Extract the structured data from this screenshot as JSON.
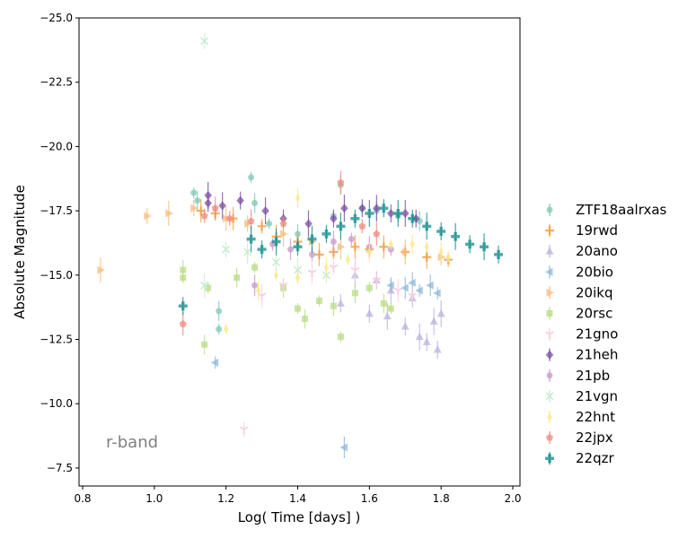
{
  "chart_data": {
    "type": "scatter",
    "xlabel": "Log( Time [days] )",
    "ylabel": "Absolute Magnitude",
    "annotation": "r-band",
    "xlim": [
      0.79,
      2.02
    ],
    "ylim": [
      -25.0,
      -6.8
    ],
    "y_inverted": true,
    "xticks": [
      0.8,
      1.0,
      1.2,
      1.4,
      1.6,
      1.8,
      2.0
    ],
    "xtick_labels": [
      "0.8",
      "1.0",
      "1.2",
      "1.4",
      "1.6",
      "1.8",
      "2.0"
    ],
    "yticks": [
      -25.0,
      -22.5,
      -20.0,
      -17.5,
      -15.0,
      -12.5,
      -10.0,
      -7.5
    ],
    "ytick_labels": [
      "−25.0",
      "−22.5",
      "−20.0",
      "−17.5",
      "−15.0",
      "−12.5",
      "−10.0",
      "−7.5"
    ],
    "grid": false,
    "legend_position": "right",
    "series": [
      {
        "name": "ZTF18aalrxas",
        "color": "#7fc8b5",
        "marker": "circle",
        "points": [
          [
            1.11,
            -18.2
          ],
          [
            1.12,
            -17.9
          ],
          [
            1.18,
            -12.9
          ],
          [
            1.18,
            -13.6
          ],
          [
            1.27,
            -18.8
          ],
          [
            1.28,
            -17.8
          ],
          [
            1.32,
            -17.0
          ],
          [
            1.4,
            -16.6
          ],
          [
            1.5,
            -17.3
          ],
          [
            1.52,
            -18.5
          ],
          [
            1.58,
            -17.6
          ],
          [
            1.62,
            -17.5
          ],
          [
            1.68,
            -17.3
          ],
          [
            1.74,
            -17.1
          ]
        ]
      },
      {
        "name": "19rwd",
        "color": "#f39c3e",
        "marker": "plus",
        "points": [
          [
            1.13,
            -17.5
          ],
          [
            1.17,
            -17.4
          ],
          [
            1.22,
            -17.2
          ],
          [
            1.3,
            -16.9
          ],
          [
            1.34,
            -16.5
          ],
          [
            1.4,
            -16.3
          ],
          [
            1.46,
            -15.8
          ],
          [
            1.5,
            -15.9
          ],
          [
            1.56,
            -16.1
          ],
          [
            1.6,
            -16.0
          ],
          [
            1.64,
            -16.1
          ],
          [
            1.7,
            -15.9
          ],
          [
            1.76,
            -15.7
          ],
          [
            1.82,
            -15.6
          ]
        ]
      },
      {
        "name": "20ano",
        "color": "#b8b4dc",
        "marker": "triangle-up",
        "points": [
          [
            1.52,
            -13.9
          ],
          [
            1.56,
            -15.0
          ],
          [
            1.6,
            -13.5
          ],
          [
            1.65,
            -13.4
          ],
          [
            1.7,
            -13.0
          ],
          [
            1.74,
            -12.6
          ],
          [
            1.76,
            -12.4
          ],
          [
            1.78,
            -13.2
          ],
          [
            1.79,
            -12.1
          ],
          [
            1.8,
            -13.5
          ],
          [
            1.72,
            -14.1
          ],
          [
            1.66,
            -14.4
          ],
          [
            1.62,
            -14.8
          ]
        ]
      },
      {
        "name": "20bio",
        "color": "#8cb7d8",
        "marker": "triangle-left",
        "points": [
          [
            1.17,
            -11.6
          ],
          [
            1.53,
            -8.3
          ],
          [
            1.66,
            -14.6
          ],
          [
            1.7,
            -14.5
          ],
          [
            1.74,
            -14.4
          ],
          [
            1.77,
            -14.6
          ],
          [
            1.79,
            -14.3
          ],
          [
            1.72,
            -14.7
          ]
        ]
      },
      {
        "name": "20ikq",
        "color": "#f7bb7a",
        "marker": "triangle-right",
        "points": [
          [
            0.85,
            -15.2
          ],
          [
            0.98,
            -17.3
          ],
          [
            1.04,
            -17.4
          ],
          [
            1.11,
            -17.6
          ],
          [
            1.2,
            -17.2
          ],
          [
            1.26,
            -17.0
          ],
          [
            1.36,
            -16.6
          ],
          [
            1.44,
            -16.3
          ],
          [
            1.52,
            -16.1
          ],
          [
            1.6,
            -16.0
          ],
          [
            1.7,
            -15.9
          ],
          [
            1.8,
            -15.7
          ]
        ]
      },
      {
        "name": "20rsc",
        "color": "#b8dc84",
        "marker": "square",
        "points": [
          [
            1.08,
            -15.2
          ],
          [
            1.08,
            -14.9
          ],
          [
            1.14,
            -12.3
          ],
          [
            1.15,
            -14.5
          ],
          [
            1.23,
            -14.9
          ],
          [
            1.28,
            -15.3
          ],
          [
            1.36,
            -14.5
          ],
          [
            1.4,
            -13.7
          ],
          [
            1.42,
            -13.3
          ],
          [
            1.46,
            -14.0
          ],
          [
            1.5,
            -13.8
          ],
          [
            1.52,
            -12.6
          ],
          [
            1.56,
            -14.3
          ],
          [
            1.6,
            -14.5
          ],
          [
            1.64,
            -13.9
          ],
          [
            1.66,
            -13.7
          ]
        ]
      },
      {
        "name": "21gno",
        "color": "#f9cde0",
        "marker": "tri-down",
        "points": [
          [
            1.25,
            -9.0
          ],
          [
            1.3,
            -14.2
          ],
          [
            1.36,
            -14.6
          ],
          [
            1.44,
            -15.1
          ],
          [
            1.5,
            -15.3
          ],
          [
            1.56,
            -15.2
          ],
          [
            1.62,
            -14.8
          ],
          [
            1.68,
            -14.4
          ],
          [
            1.72,
            -14.2
          ]
        ]
      },
      {
        "name": "21heh",
        "color": "#7b4ea3",
        "marker": "diamond",
        "points": [
          [
            1.15,
            -18.1
          ],
          [
            1.15,
            -17.8
          ],
          [
            1.19,
            -17.7
          ],
          [
            1.24,
            -17.9
          ],
          [
            1.31,
            -17.5
          ],
          [
            1.36,
            -17.2
          ],
          [
            1.43,
            -17.0
          ],
          [
            1.5,
            -17.2
          ],
          [
            1.53,
            -17.6
          ],
          [
            1.58,
            -17.6
          ],
          [
            1.62,
            -17.6
          ],
          [
            1.66,
            -17.4
          ],
          [
            1.7,
            -17.4
          ],
          [
            1.73,
            -17.2
          ]
        ]
      },
      {
        "name": "21pb",
        "color": "#c89acc",
        "marker": "circle",
        "points": [
          [
            1.28,
            -14.6
          ],
          [
            1.33,
            -16.2
          ],
          [
            1.38,
            -16.0
          ],
          [
            1.44,
            -15.8
          ],
          [
            1.5,
            -16.3
          ],
          [
            1.55,
            -16.4
          ],
          [
            1.6,
            -16.1
          ],
          [
            1.66,
            -16.0
          ]
        ]
      },
      {
        "name": "21vgn",
        "color": "#c8ecd0",
        "marker": "x",
        "points": [
          [
            1.14,
            -24.1
          ],
          [
            1.14,
            -14.6
          ],
          [
            1.2,
            -16.0
          ],
          [
            1.26,
            -15.9
          ],
          [
            1.34,
            -15.5
          ],
          [
            1.4,
            -15.2
          ],
          [
            1.48,
            -15.0
          ]
        ]
      },
      {
        "name": "22hnt",
        "color": "#fbe88a",
        "marker": "diamond-thin",
        "points": [
          [
            1.2,
            -12.9
          ],
          [
            1.29,
            -14.4
          ],
          [
            1.34,
            -15.0
          ],
          [
            1.4,
            -18.0
          ],
          [
            1.4,
            -14.9
          ],
          [
            1.48,
            -15.3
          ],
          [
            1.54,
            -15.6
          ],
          [
            1.6,
            -15.9
          ],
          [
            1.66,
            -16.2
          ],
          [
            1.72,
            -16.2
          ],
          [
            1.76,
            -16.1
          ],
          [
            1.8,
            -15.9
          ],
          [
            1.82,
            -15.7
          ]
        ]
      },
      {
        "name": "22jpx",
        "color": "#f08a7c",
        "marker": "pentagon",
        "points": [
          [
            1.08,
            -13.1
          ],
          [
            1.14,
            -17.3
          ],
          [
            1.17,
            -17.6
          ],
          [
            1.21,
            -17.2
          ],
          [
            1.27,
            -17.1
          ],
          [
            1.36,
            -17.0
          ],
          [
            1.52,
            -18.6
          ],
          [
            1.58,
            -16.9
          ],
          [
            1.62,
            -16.6
          ]
        ]
      },
      {
        "name": "22qzr",
        "color": "#128e8c",
        "marker": "plus-filled",
        "points": [
          [
            1.08,
            -13.8
          ],
          [
            1.27,
            -16.4
          ],
          [
            1.3,
            -16.0
          ],
          [
            1.34,
            -16.3
          ],
          [
            1.4,
            -16.1
          ],
          [
            1.44,
            -16.4
          ],
          [
            1.48,
            -16.6
          ],
          [
            1.52,
            -16.9
          ],
          [
            1.56,
            -17.2
          ],
          [
            1.6,
            -17.4
          ],
          [
            1.64,
            -17.6
          ],
          [
            1.68,
            -17.4
          ],
          [
            1.72,
            -17.2
          ],
          [
            1.76,
            -16.9
          ],
          [
            1.8,
            -16.7
          ],
          [
            1.84,
            -16.5
          ],
          [
            1.88,
            -16.2
          ],
          [
            1.92,
            -16.1
          ],
          [
            1.96,
            -15.8
          ]
        ]
      }
    ]
  }
}
